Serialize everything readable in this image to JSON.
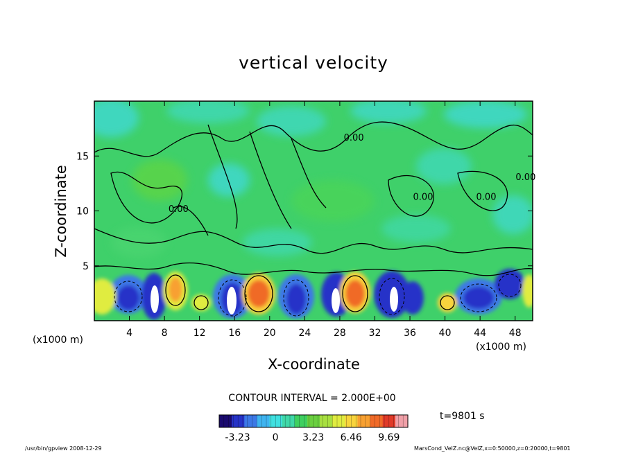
{
  "title": "vertical velocity",
  "x_axis": {
    "label": "X-coordinate",
    "unit_left": "(x1000 m)",
    "unit_right": "(x1000 m)"
  },
  "y_axis": {
    "label": "Z-coordinate"
  },
  "contour_interval": "CONTOUR INTERVAL = 2.000E+00",
  "time_label": "t=9801 s",
  "footer": {
    "left": "/usr/bin/gpview   2008-12-29",
    "right": "MarsCond_VelZ.nc@VelZ,x=0:50000,z=0:20000,t=9801"
  },
  "colorbar": {
    "ticks": [
      "-3.23",
      "0",
      "3.23",
      "6.46",
      "9.69"
    ],
    "colors": [
      "#1a0a6e",
      "#2633c8",
      "#3c78e6",
      "#3fb4f0",
      "#3fe0e0",
      "#3fd8a8",
      "#3fd060",
      "#6ad040",
      "#a8e040",
      "#e0ec40",
      "#f8d43c",
      "#f8a030",
      "#f06a28",
      "#e03a28",
      "#f0a0a8"
    ]
  },
  "chart_data": {
    "type": "heatmap",
    "title": "vertical velocity",
    "xlabel": "X-coordinate",
    "ylabel": "Z-coordinate",
    "x_unit": "(x1000 m)",
    "xlim": [
      0,
      50
    ],
    "ylim": [
      0,
      20
    ],
    "x_ticks": [
      4,
      8,
      12,
      16,
      20,
      24,
      28,
      32,
      36,
      40,
      44,
      48
    ],
    "y_ticks": [
      5,
      10,
      15
    ],
    "contour_labels": [
      {
        "text": "0.00",
        "x": 29.6,
        "y": 16.4
      },
      {
        "text": "0.00",
        "x": 9.6,
        "y": 9.9
      },
      {
        "text": "0.00",
        "x": 37.5,
        "y": 11.0
      },
      {
        "text": "0.00",
        "x": 44.7,
        "y": 11.0
      },
      {
        "text": "0.00",
        "x": 49.2,
        "y": 12.8
      }
    ],
    "colorbar": {
      "min": -4.8,
      "max": 11.3,
      "ticks": [
        -3.23,
        0,
        3.23,
        6.46,
        9.69
      ]
    },
    "grid": false,
    "legend": "colorbar bottom-center"
  }
}
